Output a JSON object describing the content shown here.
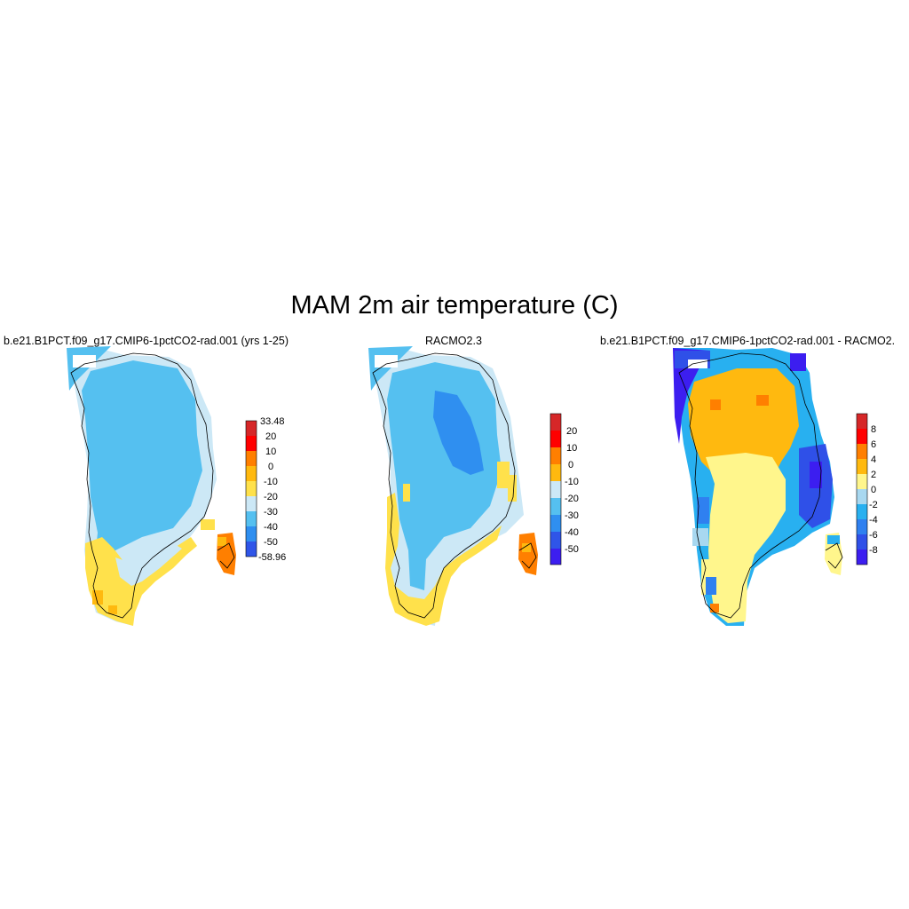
{
  "title": "MAM 2m air temperature (C)",
  "panels": [
    {
      "title": "b.e21.B1PCT.f09_g17.CMIP6-1pctCO2-rad.001 (yrs 1-25)",
      "colorbar": {
        "labels": [
          "33.48",
          "20",
          "10",
          "0",
          "-10",
          "-20",
          "-30",
          "-40",
          "-50",
          "-58.96"
        ],
        "colors": [
          "#d62728",
          "#ff0000",
          "#ff7f00",
          "#ffb90f",
          "#ffe14b",
          "#cce8f6",
          "#55c0f0",
          "#2f8ff0",
          "#2f55e8",
          "#3c1ef0"
        ]
      }
    },
    {
      "title": "RACMO2.3",
      "colorbar": {
        "labels": [
          "20",
          "10",
          "0",
          "-10",
          "-20",
          "-30",
          "-40",
          "-50"
        ],
        "colors": [
          "#d62728",
          "#ff0000",
          "#ff7f00",
          "#ffb90f",
          "#ffe14b",
          "#cce8f6",
          "#55c0f0",
          "#2f8ff0",
          "#2f55e8",
          "#3c1ef0"
        ]
      }
    },
    {
      "title": "b.e21.B1PCT.f09_g17.CMIP6-1pctCO2-rad.001 - RACMO2.",
      "colorbar": {
        "labels": [
          "8",
          "6",
          "4",
          "2",
          "0",
          "-2",
          "-4",
          "-6",
          "-8"
        ],
        "colors": [
          "#d62728",
          "#ff0000",
          "#ff7f00",
          "#ffb90f",
          "#fff68c",
          "#a8d8f0",
          "#28b0f0",
          "#2f80f0",
          "#2f50e8",
          "#3c1ef0"
        ]
      }
    }
  ]
}
